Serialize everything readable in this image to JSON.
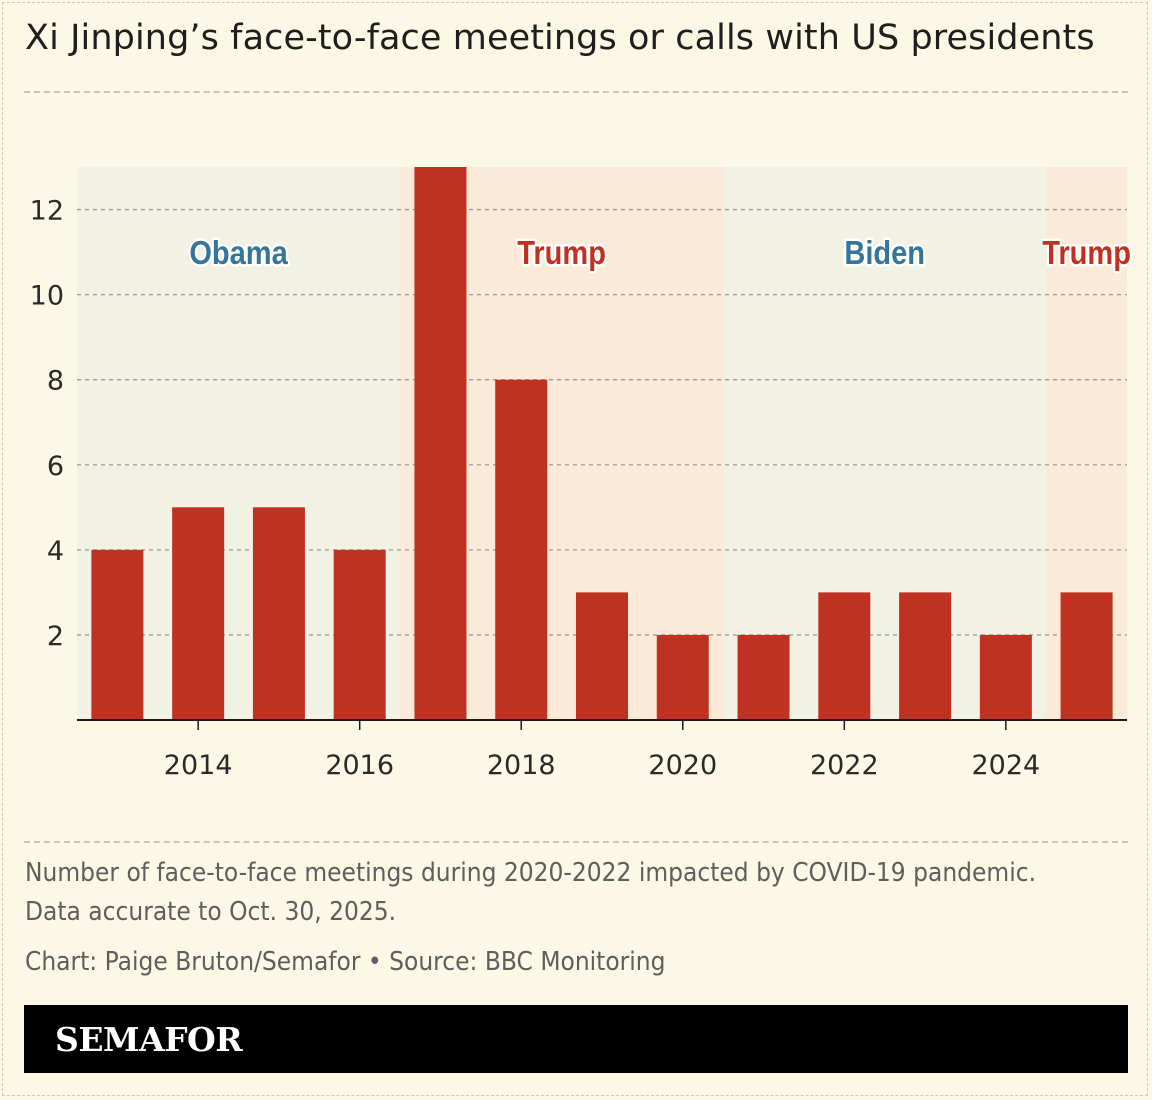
{
  "header": {
    "title": "Xi Jinping’s face-to-face meetings or calls with US presidents"
  },
  "chart_data": {
    "type": "bar",
    "x": [
      2013,
      2014,
      2015,
      2016,
      2017,
      2018,
      2019,
      2020,
      2021,
      2022,
      2023,
      2024,
      2025
    ],
    "values": [
      4,
      5,
      5,
      4,
      13,
      8,
      3,
      2,
      2,
      3,
      3,
      2,
      3
    ],
    "xticks": [
      "2014",
      "2016",
      "2018",
      "2020",
      "2022",
      "2024"
    ],
    "yticks": [
      "2",
      "4",
      "6",
      "8",
      "10",
      "12"
    ],
    "xlim": [
      2012.5,
      2025.5
    ],
    "ylim": [
      0,
      13
    ],
    "grid": true,
    "bar_color": "#bf3120",
    "title": "Xi Jinping’s face-to-face meetings or calls with US presidents",
    "xlabel": "",
    "ylabel": "",
    "periods": [
      {
        "label": "Obama",
        "start": 2012.5,
        "end": 2016.5,
        "color": "#357597",
        "shade": "#f1f2e3"
      },
      {
        "label": "Trump",
        "start": 2016.5,
        "end": 2020.5,
        "color": "#bf3120",
        "shade": "#fbead7"
      },
      {
        "label": "Biden",
        "start": 2020.5,
        "end": 2024.5,
        "color": "#357597",
        "shade": "#f1f2e3"
      },
      {
        "label": "Trump",
        "start": 2024.5,
        "end": 2025.5,
        "color": "#bf3120",
        "shade": "#fbead7"
      }
    ]
  },
  "notes": {
    "line1": "Number of face-to-face meetings during 2020-2022 impacted by COVID-19 pandemic.",
    "line2": "Data accurate to Oct. 30, 2025.",
    "credit": "Chart: Paige Bruton/Semafor • Source: BBC Monitoring"
  },
  "footer": {
    "brand": "SEMAFOR"
  },
  "colors": {
    "background": "#fbf8e5",
    "bar": "#bf3120",
    "democrat": "#357597",
    "republican": "#bf3120"
  }
}
